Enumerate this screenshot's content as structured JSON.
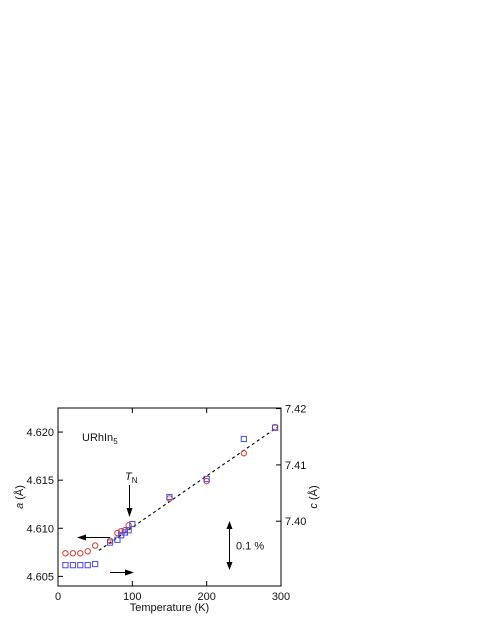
{
  "chart_data": {
    "type": "scatter",
    "sample_label": "URhIn",
    "sample_subscript": "5",
    "xlabel": "Temperature (K)",
    "ylabel_left_var": "a",
    "ylabel_left_unit": " (Å)",
    "ylabel_right_var": "c",
    "ylabel_right_unit": " (Å)",
    "xlim": [
      0,
      300
    ],
    "ylim_left": [
      4.604,
      4.6225
    ],
    "ylim_right": [
      7.3885,
      7.4201
    ],
    "x_ticks": [
      0,
      100,
      200,
      300
    ],
    "x_tick_labels": [
      "0",
      "100",
      "200",
      "300"
    ],
    "y_left_ticks": [
      4.605,
      4.61,
      4.615,
      4.62
    ],
    "y_left_tick_labels": [
      "4.605",
      "4.610",
      "4.615",
      "4.620"
    ],
    "y_right_ticks": [
      7.4,
      7.41,
      7.42
    ],
    "y_right_tick_labels": [
      "7.40",
      "7.41",
      "7.42"
    ],
    "series": [
      {
        "marker": "circle",
        "color": "#e0342c",
        "axis": "left",
        "x": [
          10,
          20,
          30,
          40,
          50,
          70,
          80,
          85,
          90,
          95,
          150,
          200,
          250,
          292
        ],
        "y": [
          4.6074,
          4.6074,
          4.6074,
          4.6076,
          4.6082,
          4.6087,
          4.6095,
          4.6097,
          4.6098,
          4.6103,
          4.6131,
          4.6149,
          4.6178,
          4.6205
        ]
      },
      {
        "marker": "square",
        "color": "#4a4ae0",
        "axis": "right",
        "x": [
          10,
          20,
          30,
          40,
          50,
          70,
          80,
          85,
          90,
          95,
          100,
          150,
          200,
          250,
          292
        ],
        "y": [
          7.3922,
          7.3922,
          7.3922,
          7.3922,
          7.3924,
          7.3962,
          7.3967,
          7.3975,
          7.398,
          7.3984,
          7.3995,
          7.4043,
          7.4075,
          7.4146,
          7.4166
        ]
      }
    ],
    "fit_line": {
      "x": [
        55,
        295
      ],
      "y": [
        4.6077,
        4.6205
      ],
      "style": "dashed"
    },
    "annotations": {
      "tn_var": "T",
      "tn_sub": "N",
      "tn_x": 97,
      "percent_label": "0.1 %",
      "percent_span": 0.1
    }
  }
}
